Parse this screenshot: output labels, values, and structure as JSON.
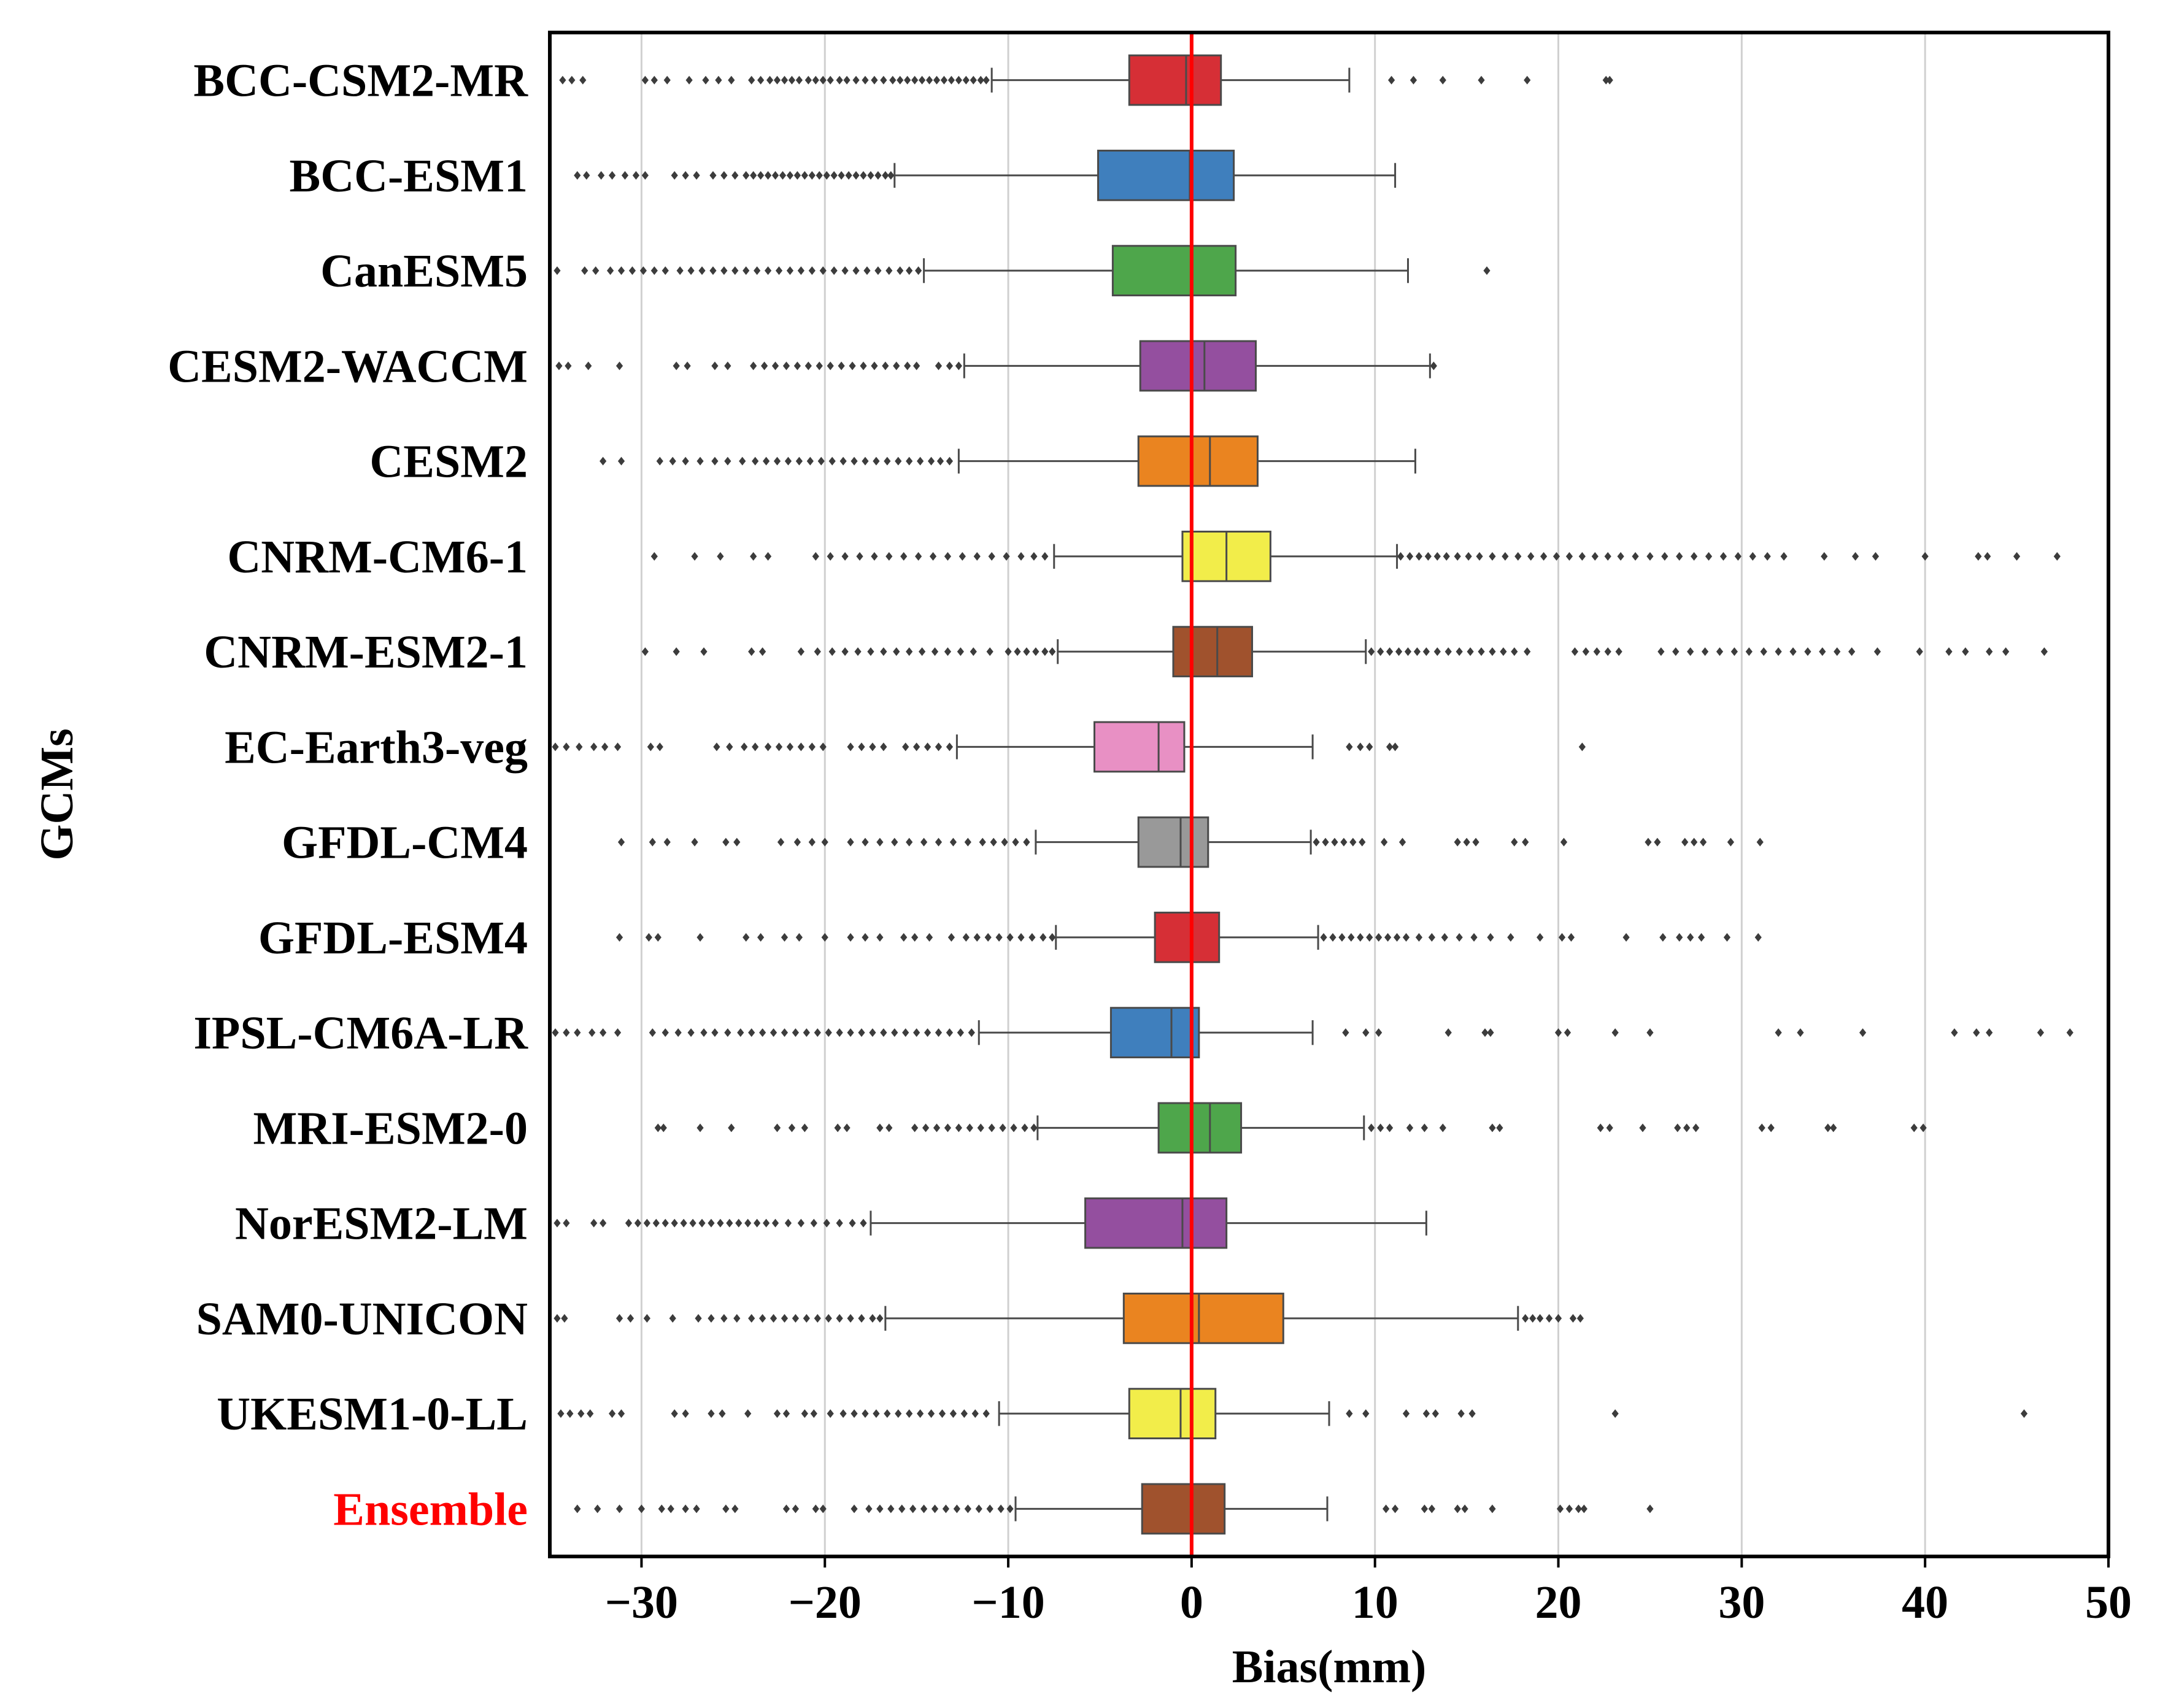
{
  "chart_data": {
    "type": "boxplot",
    "orientation": "horizontal",
    "title": "",
    "xlabel": "Bias(mm)",
    "ylabel": "GCMs",
    "xlim": [
      -35,
      50
    ],
    "x_ticks": [
      -30,
      -20,
      -10,
      0,
      10,
      20,
      30,
      40,
      50
    ],
    "x_tick_labels": [
      "−30",
      "−20",
      "−10",
      "0",
      "10",
      "20",
      "30",
      "40",
      "50"
    ],
    "grid": "vertical",
    "reference_line": {
      "x": 0,
      "color": "#ff0000"
    },
    "series": [
      {
        "name": "BCC-CSM2-MR",
        "color": "#d62f36",
        "label_color": "#000000",
        "whislo": -10.9,
        "q1": -3.4,
        "median": -0.3,
        "q3": 1.6,
        "whishi": 8.6,
        "fliers": [
          -34.3,
          -33.8,
          -33.2,
          -29.8,
          -29.3,
          -28.6,
          -27.4,
          -26.5,
          -25.8,
          -25.1,
          -24.0,
          -23.5,
          -23.0,
          -22.6,
          -22.2,
          -21.8,
          -21.4,
          -20.9,
          -20.5,
          -20.1,
          -19.7,
          -19.2,
          -18.8,
          -18.3,
          -17.8,
          -17.3,
          -16.8,
          -16.3,
          -15.9,
          -15.5,
          -15.1,
          -14.7,
          -14.3,
          -13.9,
          -13.5,
          -13.1,
          -12.7,
          -12.3,
          -11.9,
          -11.5,
          -11.2,
          10.9,
          12.1,
          13.7,
          15.8,
          18.3,
          22.6,
          22.8
        ]
      },
      {
        "name": "BCC-ESM1",
        "color": "#3f7fbd",
        "label_color": "#000000",
        "whislo": -16.2,
        "q1": -5.1,
        "median": -0.1,
        "q3": 2.3,
        "whishi": 11.1,
        "fliers": [
          -33.5,
          -33.0,
          -32.2,
          -31.6,
          -30.9,
          -30.3,
          -29.8,
          -28.2,
          -27.6,
          -27.0,
          -26.1,
          -25.5,
          -24.9,
          -24.3,
          -23.9,
          -23.5,
          -23.1,
          -22.7,
          -22.3,
          -21.9,
          -21.5,
          -21.1,
          -20.7,
          -20.3,
          -19.9,
          -19.5,
          -19.1,
          -18.7,
          -18.3,
          -17.9,
          -17.5,
          -17.1,
          -16.7,
          -16.4
        ]
      },
      {
        "name": "CanESM5",
        "color": "#4ea64b",
        "label_color": "#000000",
        "whislo": -14.6,
        "q1": -4.3,
        "median": 0.0,
        "q3": 2.4,
        "whishi": 11.8,
        "fliers": [
          -34.6,
          -33.1,
          -32.5,
          -31.7,
          -31.1,
          -30.5,
          -29.9,
          -29.3,
          -28.7,
          -27.9,
          -27.3,
          -26.7,
          -26.1,
          -25.5,
          -24.9,
          -24.3,
          -23.7,
          -23.1,
          -22.5,
          -21.9,
          -21.3,
          -20.7,
          -20.1,
          -19.5,
          -18.9,
          -18.3,
          -17.7,
          -17.1,
          -16.5,
          -15.9,
          -15.4,
          -14.9,
          16.1
        ]
      },
      {
        "name": "CESM2-WACCM",
        "color": "#944f9f",
        "label_color": "#000000",
        "whislo": -12.4,
        "q1": -2.8,
        "median": 0.7,
        "q3": 3.5,
        "whishi": 13.0,
        "fliers": [
          -34.5,
          -34.0,
          -32.9,
          -31.2,
          -28.1,
          -27.5,
          -26.0,
          -25.3,
          -23.9,
          -23.3,
          -22.7,
          -22.1,
          -21.5,
          -20.9,
          -20.3,
          -19.7,
          -19.1,
          -18.5,
          -17.9,
          -17.3,
          -16.7,
          -16.1,
          -15.5,
          -15.0,
          -13.8,
          -13.2,
          -12.7,
          13.2
        ]
      },
      {
        "name": "CESM2",
        "color": "#ea8420",
        "label_color": "#000000",
        "whislo": -12.7,
        "q1": -2.9,
        "median": 1.0,
        "q3": 3.6,
        "whishi": 12.2,
        "fliers": [
          -32.1,
          -31.1,
          -29.0,
          -28.3,
          -27.6,
          -26.8,
          -26.0,
          -25.3,
          -24.5,
          -23.8,
          -23.2,
          -22.6,
          -22.0,
          -21.4,
          -20.8,
          -20.2,
          -19.6,
          -19.0,
          -18.4,
          -17.8,
          -17.2,
          -16.6,
          -16.0,
          -15.4,
          -14.8,
          -14.2,
          -13.7,
          -13.2
        ]
      },
      {
        "name": "CNRM-CM6-1",
        "color": "#f2ed4a",
        "label_color": "#000000",
        "whislo": -7.5,
        "q1": -0.5,
        "median": 1.9,
        "q3": 4.3,
        "whishi": 11.2,
        "fliers": [
          -29.3,
          -27.1,
          -25.7,
          -23.9,
          -23.1,
          -20.5,
          -19.7,
          -18.9,
          -18.1,
          -17.3,
          -16.5,
          -15.7,
          -14.9,
          -14.1,
          -13.3,
          -12.5,
          -11.7,
          -10.9,
          -10.1,
          -9.3,
          -8.6,
          -8.0,
          11.4,
          11.9,
          12.4,
          12.9,
          13.4,
          13.9,
          14.5,
          15.1,
          15.7,
          16.4,
          17.1,
          17.8,
          18.5,
          19.2,
          19.9,
          20.6,
          21.3,
          22.0,
          22.7,
          23.4,
          24.2,
          25.0,
          25.8,
          26.6,
          27.4,
          28.2,
          29.0,
          29.8,
          30.6,
          31.4,
          32.3,
          34.5,
          36.2,
          37.3,
          40.0,
          42.9,
          43.4,
          45.0,
          47.2
        ]
      },
      {
        "name": "CNRM-ESM2-1",
        "color": "#a0522d",
        "label_color": "#000000",
        "whislo": -7.3,
        "q1": -1.0,
        "median": 1.4,
        "q3": 3.3,
        "whishi": 9.5,
        "fliers": [
          -29.8,
          -28.1,
          -26.6,
          -24.0,
          -23.4,
          -21.3,
          -20.4,
          -19.6,
          -18.9,
          -18.2,
          -17.5,
          -16.8,
          -16.1,
          -15.4,
          -14.7,
          -14.0,
          -13.3,
          -12.6,
          -11.9,
          -11.0,
          -10.0,
          -9.5,
          -9.0,
          -8.5,
          -8.0,
          -7.6,
          9.8,
          10.3,
          10.8,
          11.3,
          11.8,
          12.3,
          12.8,
          13.4,
          14.0,
          14.6,
          15.2,
          15.8,
          16.4,
          17.0,
          17.6,
          18.3,
          20.9,
          21.5,
          22.1,
          22.7,
          23.3,
          25.6,
          26.4,
          27.2,
          28.0,
          28.8,
          29.6,
          30.4,
          31.2,
          32.0,
          32.8,
          33.6,
          34.4,
          35.2,
          36.0,
          37.4,
          39.7,
          41.3,
          42.2,
          43.5,
          44.4,
          46.5
        ]
      },
      {
        "name": "EC-Earth3-veg",
        "color": "#e890c4",
        "label_color": "#000000",
        "whislo": -12.8,
        "q1": -5.3,
        "median": -1.8,
        "q3": -0.4,
        "whishi": 6.6,
        "fliers": [
          -34.7,
          -34.1,
          -33.4,
          -32.6,
          -32.0,
          -31.3,
          -29.5,
          -29.0,
          -25.9,
          -25.2,
          -24.4,
          -23.8,
          -23.1,
          -22.5,
          -21.9,
          -21.3,
          -20.7,
          -20.1,
          -18.6,
          -18.0,
          -17.4,
          -16.8,
          -15.6,
          -15.0,
          -14.4,
          -13.8,
          -13.2,
          8.6,
          9.2,
          9.7,
          10.8,
          11.1,
          21.3
        ]
      },
      {
        "name": "GFDL-CM4",
        "color": "#999999",
        "label_color": "#000000",
        "whislo": -8.5,
        "q1": -2.9,
        "median": -0.6,
        "q3": 0.9,
        "whishi": 6.5,
        "fliers": [
          -31.1,
          -29.4,
          -28.6,
          -27.1,
          -25.4,
          -24.8,
          -22.4,
          -21.5,
          -20.7,
          -20.0,
          -18.6,
          -17.8,
          -17.0,
          -16.2,
          -15.4,
          -14.6,
          -13.8,
          -13.0,
          -12.2,
          -11.4,
          -10.8,
          -10.2,
          -9.6,
          -9.0,
          6.8,
          7.3,
          7.8,
          8.3,
          8.8,
          9.3,
          10.5,
          11.5,
          14.5,
          15.0,
          15.5,
          17.6,
          18.2,
          20.3,
          24.9,
          25.4,
          26.9,
          27.4,
          27.9,
          29.4,
          31.0
        ]
      },
      {
        "name": "GFDL-ESM4",
        "color": "#d62f36",
        "label_color": "#000000",
        "whislo": -7.4,
        "q1": -2.0,
        "median": 0.0,
        "q3": 1.5,
        "whishi": 6.9,
        "fliers": [
          -31.2,
          -29.6,
          -29.1,
          -26.8,
          -24.3,
          -23.5,
          -22.2,
          -21.4,
          -20.0,
          -18.6,
          -17.8,
          -17.0,
          -15.7,
          -15.1,
          -14.3,
          -13.1,
          -12.3,
          -11.7,
          -11.1,
          -10.5,
          -9.9,
          -9.3,
          -8.7,
          -8.1,
          -7.6,
          7.2,
          7.7,
          8.2,
          8.7,
          9.2,
          9.7,
          10.2,
          10.7,
          11.2,
          11.7,
          12.4,
          13.1,
          13.8,
          14.6,
          15.4,
          16.3,
          17.4,
          19.0,
          20.2,
          20.7,
          23.7,
          25.7,
          26.6,
          27.2,
          27.8,
          29.2,
          30.9
        ]
      },
      {
        "name": "IPSL-CM6A-LR",
        "color": "#3f7fbd",
        "label_color": "#000000",
        "whislo": -11.6,
        "q1": -4.4,
        "median": -1.1,
        "q3": 0.4,
        "whishi": 6.6,
        "fliers": [
          -34.7,
          -34.1,
          -33.5,
          -32.7,
          -32.1,
          -31.3,
          -29.4,
          -28.7,
          -28.0,
          -27.3,
          -26.6,
          -26.0,
          -25.3,
          -24.6,
          -24.0,
          -23.4,
          -22.8,
          -22.2,
          -21.6,
          -21.0,
          -20.4,
          -19.8,
          -19.2,
          -18.6,
          -18.0,
          -17.4,
          -16.8,
          -16.2,
          -15.6,
          -15.0,
          -14.4,
          -13.8,
          -13.2,
          -12.6,
          -12.0,
          8.4,
          9.5,
          10.2,
          14.0,
          16.0,
          16.3,
          20.0,
          20.5,
          23.1,
          25.0,
          32.0,
          33.2,
          36.6,
          41.6,
          42.8,
          43.5,
          46.3,
          47.9
        ]
      },
      {
        "name": "MRI-ESM2-0",
        "color": "#4ea64b",
        "label_color": "#000000",
        "whislo": -8.4,
        "q1": -1.8,
        "median": 1.0,
        "q3": 2.7,
        "whishi": 9.4,
        "fliers": [
          -29.1,
          -28.8,
          -26.8,
          -25.1,
          -22.6,
          -21.8,
          -21.1,
          -19.3,
          -18.8,
          -17.0,
          -16.5,
          -15.1,
          -14.5,
          -13.9,
          -13.3,
          -12.7,
          -12.1,
          -11.5,
          -10.9,
          -10.3,
          -9.7,
          -9.1,
          -8.6,
          9.8,
          10.3,
          10.8,
          11.9,
          12.7,
          13.7,
          16.4,
          16.8,
          22.3,
          22.8,
          24.6,
          26.5,
          27.0,
          27.5,
          31.1,
          31.6,
          34.7,
          35.0,
          39.4,
          39.9
        ]
      },
      {
        "name": "NorESM2-LM",
        "color": "#944f9f",
        "label_color": "#000000",
        "whislo": -17.5,
        "q1": -5.8,
        "median": -0.5,
        "q3": 1.9,
        "whishi": 12.8,
        "fliers": [
          -34.6,
          -34.1,
          -32.6,
          -32.1,
          -30.7,
          -30.2,
          -29.7,
          -29.2,
          -28.7,
          -28.2,
          -27.7,
          -27.2,
          -26.7,
          -26.2,
          -25.7,
          -25.2,
          -24.7,
          -24.2,
          -23.7,
          -23.2,
          -22.7,
          -22.0,
          -21.3,
          -20.6,
          -19.9,
          -19.2,
          -18.5,
          -17.9
        ]
      },
      {
        "name": "SAM0-UNICON",
        "color": "#ea8420",
        "label_color": "#000000",
        "whislo": -16.7,
        "q1": -3.7,
        "median": 0.4,
        "q3": 5.0,
        "whishi": 17.8,
        "fliers": [
          -34.6,
          -34.2,
          -31.2,
          -30.6,
          -29.7,
          -28.3,
          -26.9,
          -26.2,
          -25.5,
          -24.8,
          -24.0,
          -23.4,
          -22.8,
          -22.2,
          -21.6,
          -21.0,
          -20.4,
          -19.8,
          -19.2,
          -18.6,
          -18.0,
          -17.4,
          -17.0,
          18.2,
          18.6,
          19.0,
          19.5,
          20.0,
          20.8,
          21.2
        ]
      },
      {
        "name": "UKESM1-0-LL",
        "color": "#f2ed4a",
        "label_color": "#000000",
        "whislo": -10.5,
        "q1": -3.4,
        "median": -0.6,
        "q3": 1.3,
        "whishi": 7.5,
        "fliers": [
          -34.4,
          -33.9,
          -33.3,
          -32.8,
          -31.6,
          -31.1,
          -28.2,
          -27.6,
          -26.2,
          -25.6,
          -24.2,
          -22.6,
          -22.1,
          -21.1,
          -20.6,
          -19.7,
          -19.0,
          -18.4,
          -17.8,
          -17.2,
          -16.6,
          -16.0,
          -15.4,
          -14.8,
          -14.2,
          -13.6,
          -13.0,
          -12.4,
          -11.8,
          -11.2,
          8.6,
          9.5,
          11.7,
          12.8,
          13.3,
          14.7,
          15.3,
          23.1,
          45.4
        ]
      },
      {
        "name": "Ensemble",
        "color": "#a0522d",
        "label_color": "#ff0000",
        "whislo": -9.6,
        "q1": -2.7,
        "median": 0.0,
        "q3": 1.8,
        "whishi": 7.4,
        "fliers": [
          -33.5,
          -32.4,
          -31.2,
          -30.0,
          -28.9,
          -28.4,
          -27.6,
          -27.0,
          -25.4,
          -24.9,
          -22.1,
          -21.6,
          -20.5,
          -20.1,
          -18.4,
          -17.6,
          -17.0,
          -16.4,
          -15.8,
          -15.2,
          -14.6,
          -14.0,
          -13.4,
          -12.8,
          -12.2,
          -11.6,
          -11.0,
          -10.4,
          -9.9,
          10.6,
          11.1,
          12.7,
          13.1,
          14.5,
          14.9,
          16.4,
          20.1,
          20.6,
          21.1,
          21.4,
          25.0
        ]
      }
    ]
  }
}
